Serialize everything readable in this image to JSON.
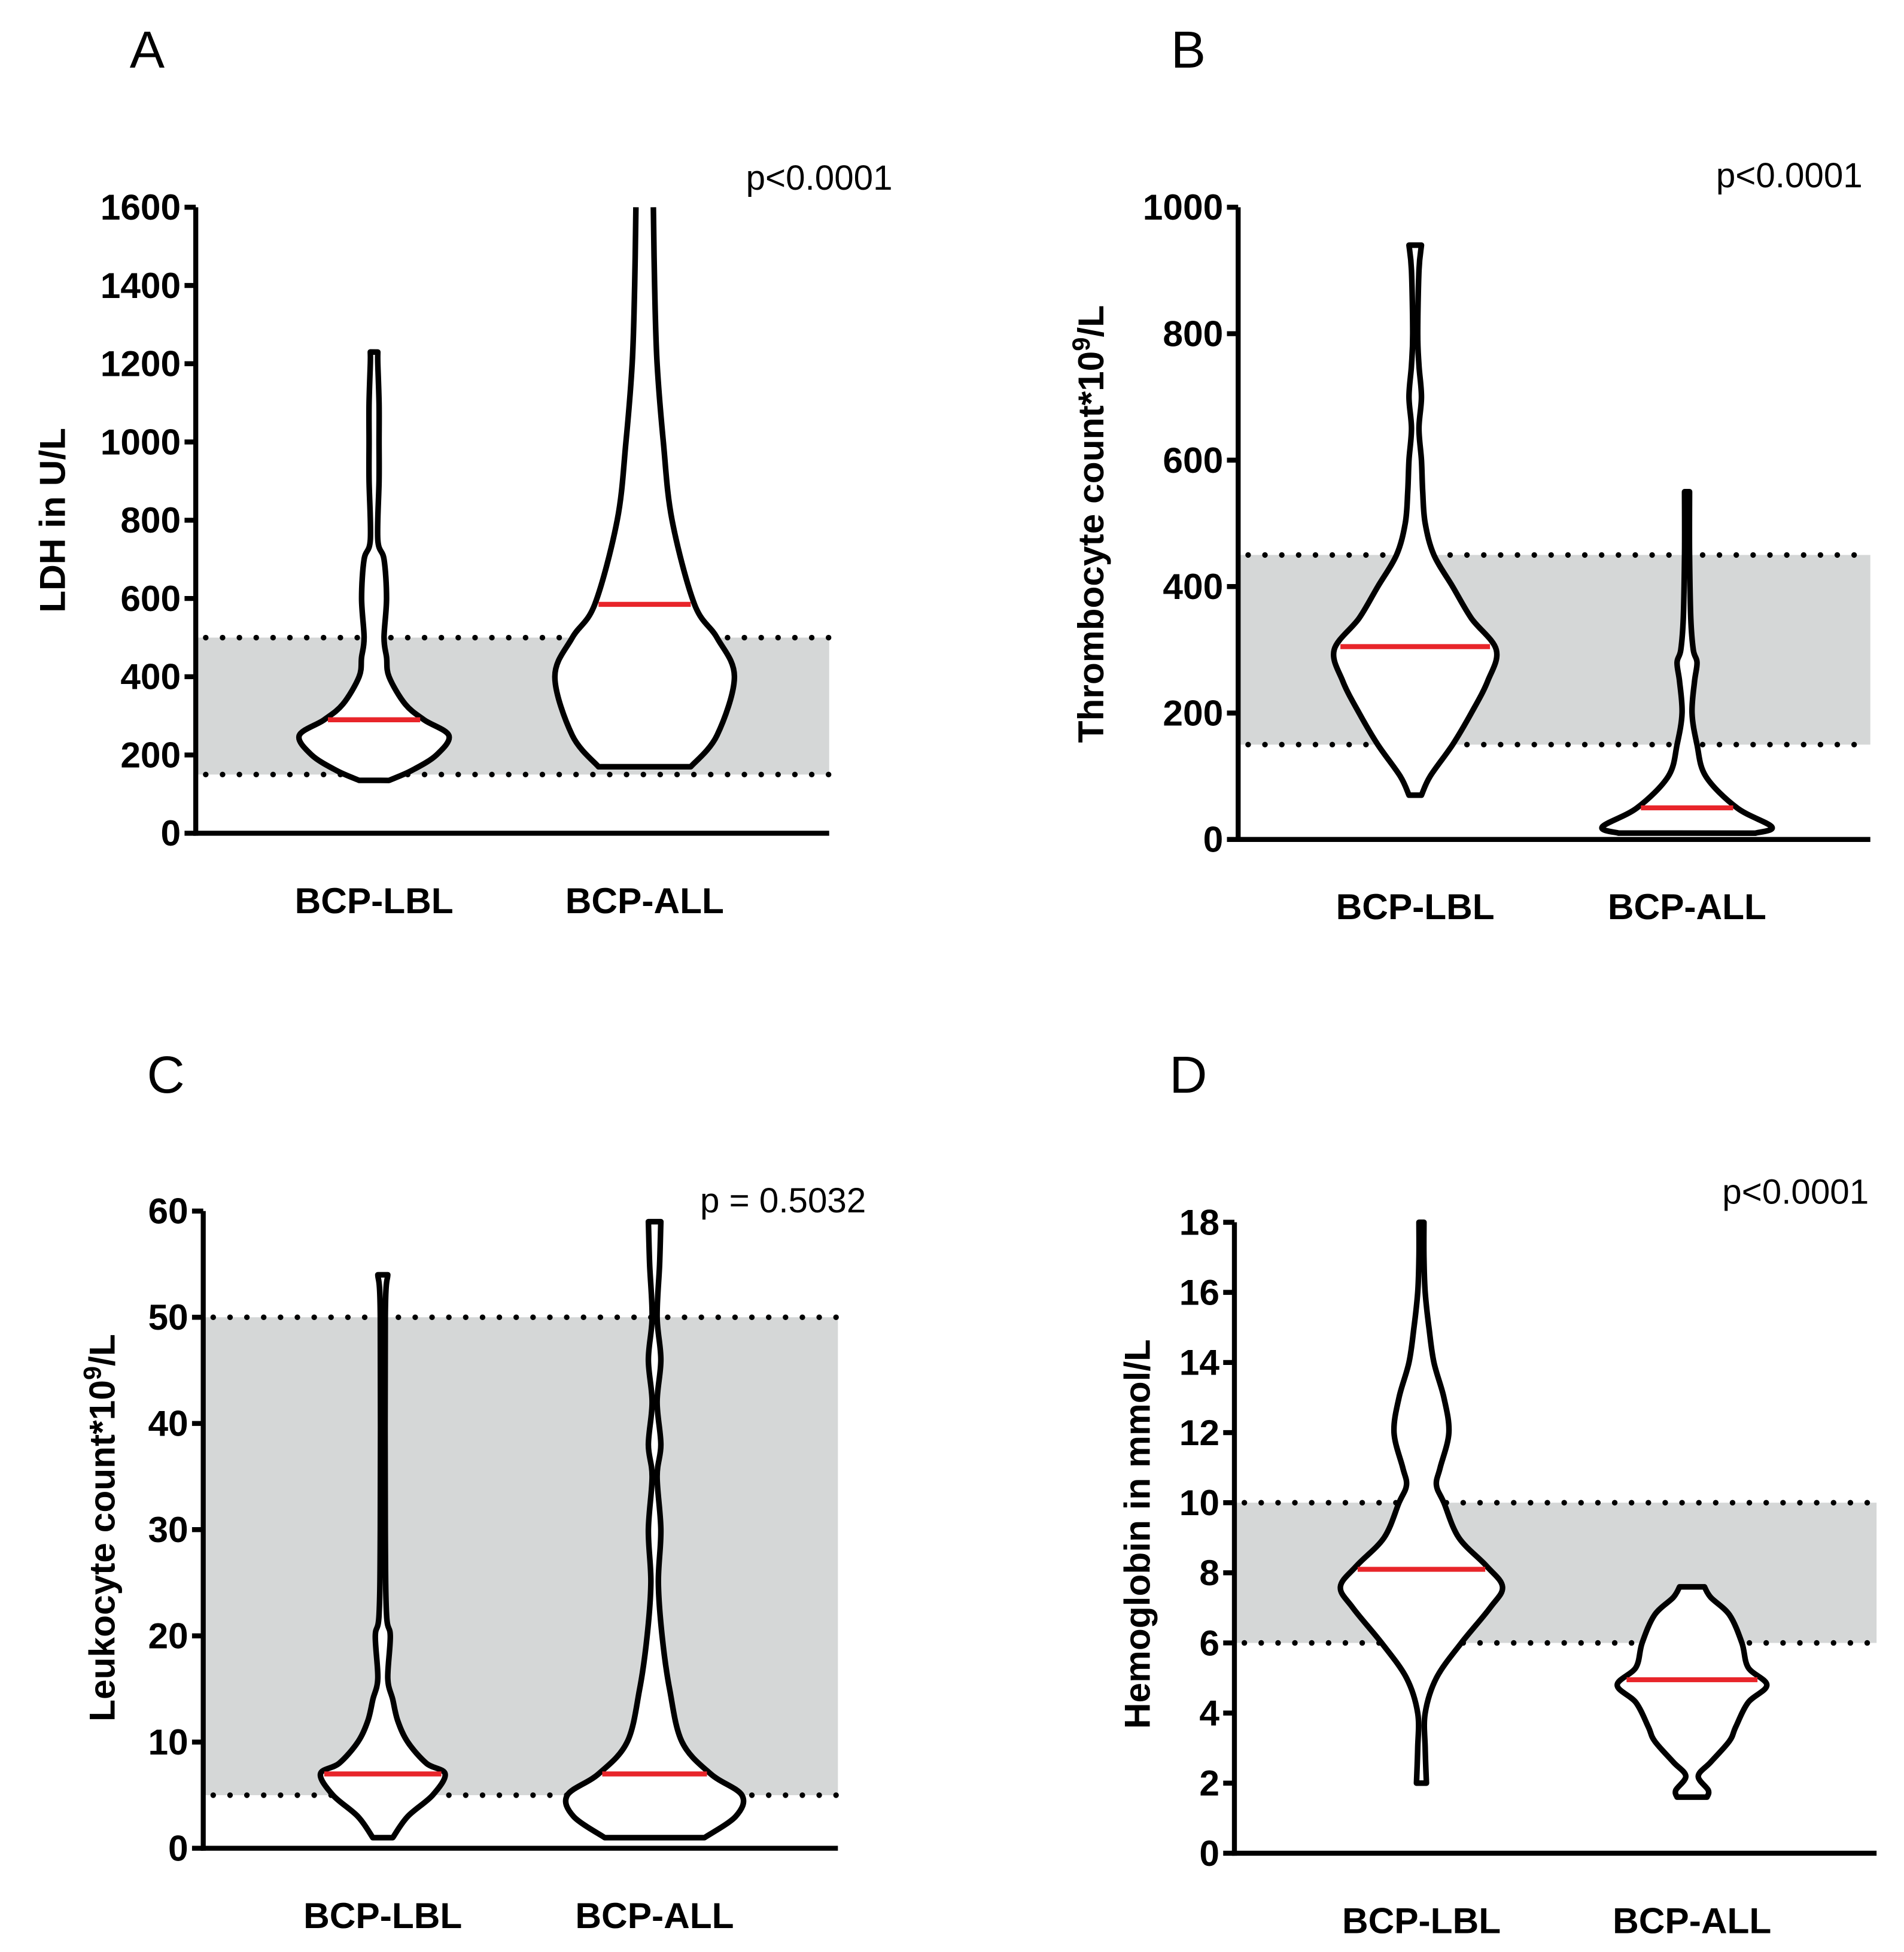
{
  "colors": {
    "median": "#e8252a",
    "band": "#d5d7d7",
    "outline": "#000000"
  },
  "chart_data": [
    {
      "type": "violin",
      "panel": "A",
      "ylabel": {
        "prefix": "LDH in U/L",
        "sup": "",
        "suffix": ""
      },
      "p_value": "p<0.0001",
      "ylim": [
        0,
        1600
      ],
      "yticks": [
        0,
        200,
        400,
        600,
        800,
        1000,
        1200,
        1400,
        1600
      ],
      "reference_band": [
        150,
        500
      ],
      "categories": [
        "BCP-LBL",
        "BCP-ALL"
      ],
      "series": [
        {
          "name": "BCP-LBL",
          "median": 290,
          "open_top": false,
          "density": [
            [
              135,
              12
            ],
            [
              160,
              30
            ],
            [
              200,
              50
            ],
            [
              250,
              60
            ],
            [
              290,
              40
            ],
            [
              330,
              25
            ],
            [
              400,
              12
            ],
            [
              450,
              10
            ],
            [
              500,
              8
            ],
            [
              600,
              10
            ],
            [
              700,
              8
            ],
            [
              750,
              3
            ],
            [
              900,
              4
            ],
            [
              1000,
              4
            ],
            [
              1100,
              4
            ],
            [
              1200,
              3
            ],
            [
              1230,
              3
            ]
          ]
        },
        {
          "name": "BCP-ALL",
          "median": 585,
          "open_top": true,
          "density": [
            [
              170,
              37
            ],
            [
              250,
              58
            ],
            [
              400,
              72
            ],
            [
              500,
              58
            ],
            [
              585,
              40
            ],
            [
              800,
              22
            ],
            [
              1000,
              15
            ],
            [
              1200,
              10
            ],
            [
              1400,
              8
            ],
            [
              1600,
              7
            ]
          ]
        }
      ]
    },
    {
      "type": "violin",
      "panel": "B",
      "ylabel": {
        "prefix": "Thrombocyte count*10",
        "sup": "9",
        "suffix": "/L"
      },
      "p_value": "p<0.0001",
      "ylim": [
        0,
        1000
      ],
      "yticks": [
        0,
        200,
        400,
        600,
        800,
        1000
      ],
      "reference_band": [
        150,
        450
      ],
      "categories": [
        "BCP-LBL",
        "BCP-ALL"
      ],
      "series": [
        {
          "name": "BCP-LBL",
          "median": 305,
          "open_top": false,
          "density": [
            [
              70,
              5
            ],
            [
              100,
              12
            ],
            [
              150,
              30
            ],
            [
              200,
              45
            ],
            [
              250,
              58
            ],
            [
              300,
              65
            ],
            [
              350,
              45
            ],
            [
              400,
              30
            ],
            [
              450,
              15
            ],
            [
              500,
              8
            ],
            [
              550,
              6
            ],
            [
              600,
              5
            ],
            [
              650,
              3
            ],
            [
              700,
              5
            ],
            [
              750,
              3
            ],
            [
              800,
              2
            ],
            [
              900,
              3
            ],
            [
              940,
              5
            ]
          ]
        },
        {
          "name": "BCP-ALL",
          "median": 50,
          "open_top": false,
          "density": [
            [
              10,
              55
            ],
            [
              20,
              68
            ],
            [
              50,
              40
            ],
            [
              100,
              15
            ],
            [
              150,
              8
            ],
            [
              200,
              4
            ],
            [
              250,
              6
            ],
            [
              280,
              8
            ],
            [
              300,
              5
            ],
            [
              350,
              3
            ],
            [
              450,
              2
            ],
            [
              550,
              2
            ]
          ]
        }
      ]
    },
    {
      "type": "violin",
      "panel": "C",
      "ylabel": {
        "prefix": "Leukocyte count*10",
        "sup": "9",
        "suffix": "/L"
      },
      "p_value": "p = 0.5032",
      "ylim": [
        0,
        60
      ],
      "yticks": [
        0,
        10,
        20,
        30,
        40,
        50,
        60
      ],
      "reference_band": [
        5,
        50
      ],
      "categories": [
        "BCP-LBL",
        "BCP-ALL"
      ],
      "series": [
        {
          "name": "BCP-LBL",
          "median": 7,
          "open_top": false,
          "density": [
            [
              1,
              8
            ],
            [
              3,
              20
            ],
            [
              5,
              40
            ],
            [
              7,
              50
            ],
            [
              8,
              35
            ],
            [
              10,
              20
            ],
            [
              12,
              12
            ],
            [
              14,
              8
            ],
            [
              16,
              4
            ],
            [
              20,
              6
            ],
            [
              22,
              3
            ],
            [
              30,
              2
            ],
            [
              50,
              2
            ],
            [
              54,
              4
            ]
          ]
        },
        {
          "name": "BCP-ALL",
          "median": 7,
          "open_top": false,
          "density": [
            [
              1,
              40
            ],
            [
              3,
              65
            ],
            [
              5,
              70
            ],
            [
              7,
              45
            ],
            [
              10,
              22
            ],
            [
              15,
              12
            ],
            [
              20,
              6
            ],
            [
              25,
              3
            ],
            [
              30,
              5
            ],
            [
              35,
              2
            ],
            [
              38,
              5
            ],
            [
              42,
              2
            ],
            [
              46,
              5
            ],
            [
              50,
              2
            ],
            [
              55,
              4
            ],
            [
              59,
              5
            ]
          ]
        }
      ]
    },
    {
      "type": "violin",
      "panel": "D",
      "ylabel": {
        "prefix": "Hemoglobin in mmol/L",
        "sup": "",
        "suffix": ""
      },
      "p_value": "p<0.0001",
      "ylim": [
        0,
        18
      ],
      "yticks": [
        0,
        2,
        4,
        6,
        8,
        10,
        12,
        14,
        16,
        18
      ],
      "reference_band": [
        6,
        10
      ],
      "categories": [
        "BCP-LBL",
        "BCP-ALL"
      ],
      "series": [
        {
          "name": "BCP-LBL",
          "median": 8.1,
          "open_top": false,
          "density": [
            [
              2,
              4
            ],
            [
              3,
              3
            ],
            [
              4,
              3
            ],
            [
              5,
              12
            ],
            [
              6,
              32
            ],
            [
              7,
              55
            ],
            [
              7.6,
              65
            ],
            [
              8.2,
              52
            ],
            [
              9,
              30
            ],
            [
              10,
              18
            ],
            [
              10.5,
              12
            ],
            [
              11,
              15
            ],
            [
              12,
              22
            ],
            [
              13,
              18
            ],
            [
              14,
              10
            ],
            [
              15,
              6
            ],
            [
              16,
              3
            ],
            [
              17,
              2
            ],
            [
              18,
              2
            ]
          ]
        },
        {
          "name": "BCP-ALL",
          "median": 4.95,
          "open_top": false,
          "density": [
            [
              1.6,
              12
            ],
            [
              1.8,
              13
            ],
            [
              2.2,
              5
            ],
            [
              2.6,
              15
            ],
            [
              3.2,
              30
            ],
            [
              3.6,
              35
            ],
            [
              4.3,
              45
            ],
            [
              4.8,
              60
            ],
            [
              5.3,
              45
            ],
            [
              6,
              40
            ],
            [
              6.8,
              30
            ],
            [
              7.3,
              15
            ],
            [
              7.6,
              10
            ]
          ]
        }
      ]
    }
  ]
}
